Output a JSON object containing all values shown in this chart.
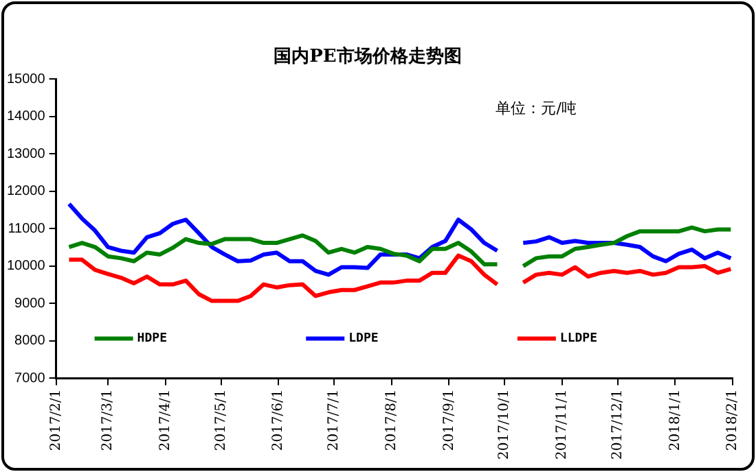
{
  "chart_data": {
    "type": "line",
    "title": "国内PE市场价格走势图",
    "annotations": [
      "单位：元/吨"
    ],
    "x": [
      "2017-02-08",
      "2017-02-15",
      "2017-02-22",
      "2017-03-01",
      "2017-03-08",
      "2017-03-15",
      "2017-03-22",
      "2017-03-29",
      "2017-04-05",
      "2017-04-12",
      "2017-04-19",
      "2017-04-26",
      "2017-05-03",
      "2017-05-10",
      "2017-05-17",
      "2017-05-24",
      "2017-05-31",
      "2017-06-07",
      "2017-06-14",
      "2017-06-21",
      "2017-06-28",
      "2017-07-05",
      "2017-07-12",
      "2017-07-19",
      "2017-07-26",
      "2017-08-02",
      "2017-08-09",
      "2017-08-16",
      "2017-08-23",
      "2017-08-30",
      "2017-09-06",
      "2017-09-13",
      "2017-09-20",
      "2017-09-27",
      "2017-10-04",
      "2017-10-11",
      "2017-10-18",
      "2017-10-25",
      "2017-11-01",
      "2017-11-08",
      "2017-11-15",
      "2017-11-22",
      "2017-11-29",
      "2017-12-06",
      "2017-12-13",
      "2017-12-20",
      "2017-12-27",
      "2018-01-03",
      "2018-01-10",
      "2018-01-17",
      "2018-01-24",
      "2018-01-31"
    ],
    "series": [
      {
        "name": "HDPE",
        "color": "#008000",
        "values": [
          10510,
          10620,
          10510,
          10260,
          10210,
          10130,
          10360,
          10310,
          10490,
          10720,
          10620,
          10590,
          10720,
          10720,
          10720,
          10620,
          10620,
          10720,
          10820,
          10670,
          10360,
          10460,
          10360,
          10510,
          10460,
          10330,
          10280,
          10130,
          10460,
          10460,
          10620,
          10390,
          10050,
          10050,
          null,
          10000,
          10210,
          10260,
          10260,
          10460,
          10510,
          10570,
          10620,
          10800,
          10930,
          10930,
          10930,
          10930,
          11030,
          10930,
          10980,
          10980
        ]
      },
      {
        "name": "LDPE",
        "color": "#0000ff",
        "values": [
          11660,
          11270,
          10950,
          10510,
          10410,
          10360,
          10770,
          10880,
          11130,
          11240,
          10880,
          10510,
          10310,
          10130,
          10150,
          10310,
          10360,
          10130,
          10130,
          9870,
          9770,
          9970,
          9970,
          9950,
          10310,
          10310,
          10310,
          10210,
          10510,
          10670,
          11240,
          10980,
          10620,
          10410,
          null,
          10620,
          10660,
          10770,
          10620,
          10670,
          10620,
          10620,
          10620,
          10570,
          10510,
          10260,
          10130,
          10330,
          10440,
          10210,
          10360,
          10210
        ]
      },
      {
        "name": "LLDPE",
        "color": "#ff0000",
        "values": [
          10170,
          10170,
          9900,
          9790,
          9690,
          9540,
          9720,
          9510,
          9510,
          9610,
          9250,
          9070,
          9070,
          9070,
          9200,
          9510,
          9430,
          9490,
          9510,
          9200,
          9300,
          9360,
          9360,
          9460,
          9560,
          9560,
          9610,
          9610,
          9820,
          9820,
          10280,
          10130,
          9770,
          9510,
          null,
          9560,
          9770,
          9820,
          9770,
          9970,
          9720,
          9820,
          9870,
          9820,
          9870,
          9770,
          9820,
          9970,
          9970,
          10000,
          9820,
          9920
        ]
      }
    ],
    "xlim": [
      "2017-02-01",
      "2018-02-01"
    ],
    "xticks": [
      {
        "value": "2017-02-01",
        "label": "2017/2/1"
      },
      {
        "value": "2017-03-01",
        "label": "2017/3/1"
      },
      {
        "value": "2017-04-01",
        "label": "2017/4/1"
      },
      {
        "value": "2017-05-01",
        "label": "2017/5/1"
      },
      {
        "value": "2017-06-01",
        "label": "2017/6/1"
      },
      {
        "value": "2017-07-01",
        "label": "2017/7/1"
      },
      {
        "value": "2017-08-01",
        "label": "2017/8/1"
      },
      {
        "value": "2017-09-01",
        "label": "2017/9/1"
      },
      {
        "value": "2017-10-01",
        "label": "2017/10/1"
      },
      {
        "value": "2017-11-01",
        "label": "2017/11/1"
      },
      {
        "value": "2017-12-01",
        "label": "2017/12/1"
      },
      {
        "value": "2018-01-01",
        "label": "2018/1/1"
      },
      {
        "value": "2018-02-01",
        "label": "2018/2/1"
      }
    ],
    "ylim": [
      7000,
      15000
    ],
    "yticks": [
      7000,
      8000,
      9000,
      10000,
      11000,
      12000,
      13000,
      14000,
      15000
    ],
    "grid": false,
    "legend": "bottom",
    "marker": "none",
    "line_style": "solid"
  }
}
